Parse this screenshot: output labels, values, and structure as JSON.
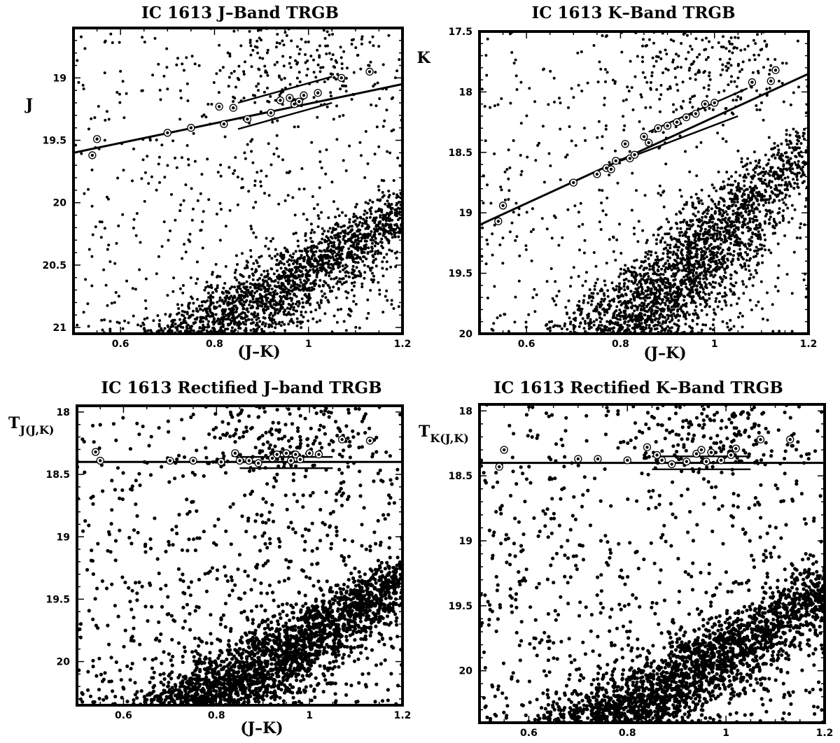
{
  "chart_data": [
    {
      "type": "scatter",
      "title": "IC 1613 J–Band TRGB",
      "xlabel": "(J–K)",
      "ylabel": "J",
      "ylabel_sub": "",
      "xlim": [
        0.5,
        1.2
      ],
      "ylim": [
        21.05,
        18.6
      ],
      "y_inverted": true,
      "xticks": [
        0.6,
        0.8,
        1.0,
        1.2
      ],
      "xtick_labels": [
        "0.6",
        "0.8",
        "1",
        "1.2"
      ],
      "yticks": [
        19.0,
        19.5,
        20.0,
        20.5,
        21.0
      ],
      "ytick_labels": [
        "19",
        "19.5",
        "20",
        "20.5",
        "21"
      ],
      "grid": false,
      "cloud": {
        "mode": "slope",
        "tip_mag": 19.2,
        "base_x": 0.8,
        "base_y": 21.0,
        "slope": -2.3,
        "n_points": 2600
      },
      "trgb_line": {
        "x": [
          0.5,
          1.2
        ],
        "y": [
          19.6,
          19.05
        ]
      },
      "trgb_offsets": {
        "x": [
          0.85,
          1.05
        ],
        "y": [
          19.2,
          18.99
        ]
      },
      "trgb_offsets_lower": {
        "x": [
          0.85,
          1.05
        ],
        "y": [
          19.41,
          19.2
        ]
      },
      "circled_stars": {
        "x": [
          0.54,
          0.55,
          0.7,
          0.75,
          0.81,
          0.82,
          0.84,
          0.87,
          0.92,
          0.94,
          0.96,
          0.97,
          0.98,
          0.99,
          1.02,
          1.07,
          1.13
        ],
        "y": [
          19.62,
          19.49,
          19.44,
          19.4,
          19.23,
          19.37,
          19.24,
          19.33,
          19.28,
          19.18,
          19.16,
          19.21,
          19.19,
          19.14,
          19.12,
          19.0,
          18.95
        ]
      }
    },
    {
      "type": "scatter",
      "title": "IC 1613 K–Band TRGB",
      "xlabel": "(J–K)",
      "ylabel": "K",
      "ylabel_sub": "",
      "xlim": [
        0.5,
        1.2
      ],
      "ylim": [
        20.0,
        17.5
      ],
      "y_inverted": true,
      "xticks": [
        0.6,
        0.8,
        1.0,
        1.2
      ],
      "xtick_labels": [
        "0.6",
        "0.8",
        "1",
        "1.2"
      ],
      "yticks": [
        17.5,
        18.0,
        18.5,
        19.0,
        19.5,
        20.0
      ],
      "ytick_labels": [
        "17.5",
        "18",
        "18.5",
        "19",
        "19.5",
        "20"
      ],
      "grid": false,
      "cloud": {
        "mode": "slope",
        "tip_mag": 18.15,
        "base_x": 0.8,
        "base_y": 20.0,
        "slope": -4.0,
        "n_points": 2600
      },
      "trgb_line": {
        "x": [
          0.5,
          1.2
        ],
        "y": [
          19.1,
          17.85
        ]
      },
      "trgb_offsets": {
        "x": [
          0.86,
          1.07
        ],
        "y": [
          18.33,
          17.97
        ]
      },
      "trgb_offsets_lower": {
        "x": [
          0.8,
          1.05
        ],
        "y": [
          18.57,
          18.2
        ]
      },
      "circled_stars": {
        "x": [
          0.54,
          0.55,
          0.7,
          0.75,
          0.77,
          0.78,
          0.79,
          0.81,
          0.82,
          0.83,
          0.85,
          0.86,
          0.88,
          0.9,
          0.92,
          0.94,
          0.96,
          0.98,
          1.0,
          1.08,
          1.12,
          1.13
        ],
        "y": [
          19.07,
          18.94,
          18.75,
          18.68,
          18.63,
          18.64,
          18.57,
          18.43,
          18.55,
          18.52,
          18.37,
          18.42,
          18.3,
          18.28,
          18.25,
          18.21,
          18.18,
          18.1,
          18.09,
          17.92,
          17.91,
          17.82
        ]
      }
    },
    {
      "type": "scatter",
      "title": "IC 1613 Rectified J–band TRGB",
      "xlabel": "(J–K)",
      "ylabel": "T",
      "ylabel_sub": "J(J,K)",
      "xlim": [
        0.5,
        1.2
      ],
      "ylim": [
        20.35,
        17.95
      ],
      "y_inverted": true,
      "xticks": [
        0.6,
        0.8,
        1.0,
        1.2
      ],
      "xtick_labels": [
        "0.6",
        "0.8",
        "1",
        "1.2"
      ],
      "yticks": [
        18.0,
        18.5,
        19.0,
        19.5,
        20.0
      ],
      "ytick_labels": [
        "18",
        "18.5",
        "19",
        "19.5",
        "20"
      ],
      "grid": false,
      "cloud": {
        "mode": "flat",
        "tip_mag": 18.45,
        "base_x": 0.78,
        "base_y": 20.3,
        "slope": -2.3,
        "n_points": 3000
      },
      "trgb_line": {
        "x": [
          0.5,
          1.2
        ],
        "y": [
          18.4,
          18.4
        ]
      },
      "trgb_offsets": {
        "x": [
          0.85,
          1.05
        ],
        "y": [
          18.36,
          18.36
        ]
      },
      "trgb_offsets_lower": {
        "x": [
          0.85,
          1.05
        ],
        "y": [
          18.45,
          18.45
        ]
      },
      "circled_stars": {
        "x": [
          0.54,
          0.55,
          0.7,
          0.75,
          0.81,
          0.84,
          0.85,
          0.87,
          0.89,
          0.92,
          0.93,
          0.95,
          0.96,
          0.97,
          0.98,
          1.0,
          1.02,
          1.07,
          1.13
        ],
        "y": [
          18.32,
          18.39,
          18.39,
          18.39,
          18.4,
          18.33,
          18.39,
          18.39,
          18.41,
          18.37,
          18.34,
          18.33,
          18.39,
          18.34,
          18.38,
          18.33,
          18.34,
          18.22,
          18.23
        ]
      }
    },
    {
      "type": "scatter",
      "title": "IC 1613 Rectified K–Band TRGB",
      "xlabel": "",
      "ylabel": "T",
      "ylabel_sub": "K(J,K)",
      "xlim": [
        0.5,
        1.2
      ],
      "ylim": [
        20.4,
        17.95
      ],
      "y_inverted": true,
      "xticks": [
        0.6,
        0.8,
        1.0,
        1.2
      ],
      "xtick_labels": [
        "0.6",
        "0.8",
        "1",
        "1.2"
      ],
      "yticks": [
        18.0,
        18.5,
        19.0,
        19.5,
        20.0
      ],
      "ytick_labels": [
        "18",
        "18.5",
        "19",
        "19.5",
        "20"
      ],
      "grid": false,
      "cloud": {
        "mode": "flat",
        "tip_mag": 18.45,
        "base_x": 0.78,
        "base_y": 20.35,
        "slope": -2.3,
        "n_points": 3000
      },
      "trgb_line": {
        "x": [
          0.5,
          1.2
        ],
        "y": [
          18.4,
          18.4
        ]
      },
      "trgb_offsets": {
        "x": [
          0.85,
          1.05
        ],
        "y": [
          18.35,
          18.35
        ]
      },
      "trgb_offsets_lower": {
        "x": [
          0.85,
          1.05
        ],
        "y": [
          18.45,
          18.45
        ]
      },
      "circled_stars": {
        "x": [
          0.54,
          0.55,
          0.7,
          0.74,
          0.8,
          0.84,
          0.86,
          0.87,
          0.89,
          0.92,
          0.94,
          0.95,
          0.96,
          0.97,
          0.99,
          1.01,
          1.02,
          1.07,
          1.13
        ],
        "y": [
          18.43,
          18.3,
          18.37,
          18.37,
          18.38,
          18.28,
          18.34,
          18.38,
          18.41,
          18.39,
          18.33,
          18.3,
          18.39,
          18.32,
          18.38,
          18.34,
          18.29,
          18.22,
          18.22
        ]
      }
    }
  ]
}
